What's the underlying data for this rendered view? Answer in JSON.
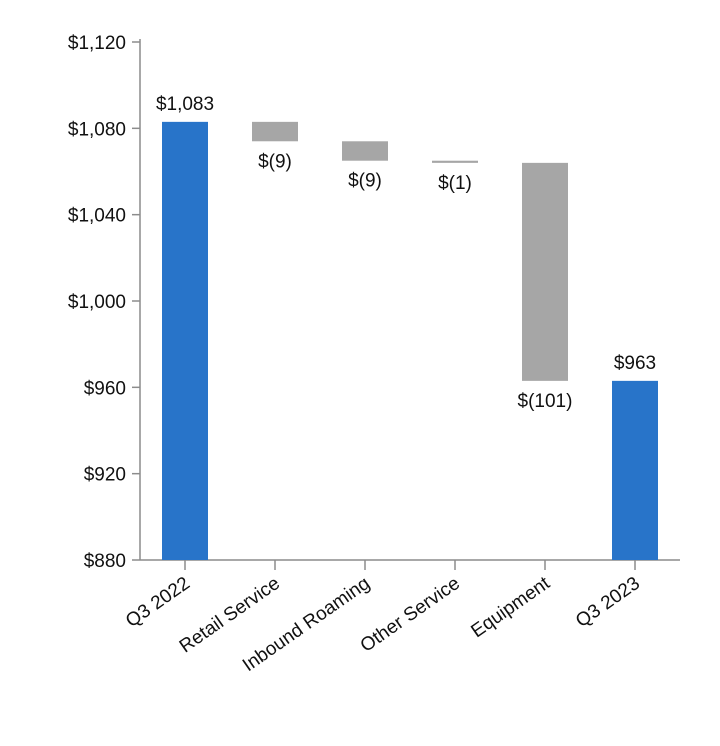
{
  "chart_data": {
    "type": "bar",
    "subtype": "waterfall",
    "categories": [
      "Q3 2022",
      "Retail Service",
      "Inbound Roaming",
      "Other Service",
      "Equipment",
      "Q3 2023"
    ],
    "values": [
      1083,
      -9,
      -9,
      -1,
      -101,
      963
    ],
    "kinds": [
      "total",
      "delta",
      "delta",
      "delta",
      "delta",
      "total"
    ],
    "data_labels": [
      "$1,083",
      "$(9)",
      "$(9)",
      "$(1)",
      "$(101)",
      "$963"
    ],
    "ylim": [
      880,
      1120
    ],
    "yticks": [
      880,
      920,
      960,
      1000,
      1040,
      1080,
      1120
    ],
    "ytick_labels": [
      "$880",
      "$920",
      "$960",
      "$1,000",
      "$1,040",
      "$1,080",
      "$1,120"
    ],
    "title": "",
    "xlabel": "",
    "ylabel": "",
    "grid": false,
    "colors": {
      "total": "#2874c9",
      "delta": "#a6a6a6",
      "axis": "#8c8c8c"
    }
  }
}
